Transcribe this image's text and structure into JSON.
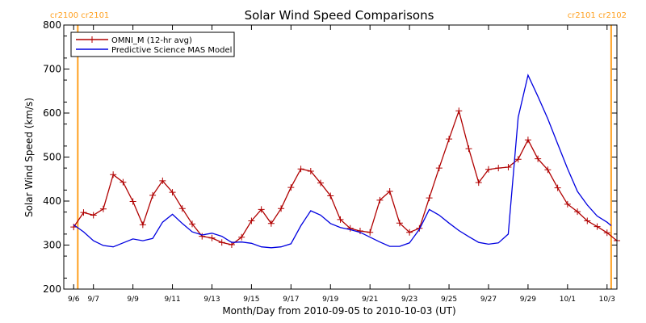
{
  "chart_data": {
    "type": "line",
    "title": "Solar Wind Speed Comparisons",
    "xlabel": "Month/Day from 2010-09-05 to 2010-10-03 (UT)",
    "ylabel": "Solar Wind Speed (km/s)",
    "xlim": [
      "2010-09-05T12:00",
      "2010-10-03T12:00"
    ],
    "ylim": [
      200,
      800
    ],
    "x_ticks": [
      {
        "date": "2010-09-06",
        "label": "9/6"
      },
      {
        "date": "2010-09-07",
        "label": "9/7"
      },
      {
        "date": "2010-09-09",
        "label": "9/9"
      },
      {
        "date": "2010-09-11",
        "label": "9/11"
      },
      {
        "date": "2010-09-13",
        "label": "9/13"
      },
      {
        "date": "2010-09-15",
        "label": "9/15"
      },
      {
        "date": "2010-09-17",
        "label": "9/17"
      },
      {
        "date": "2010-09-19",
        "label": "9/19"
      },
      {
        "date": "2010-09-21",
        "label": "9/21"
      },
      {
        "date": "2010-09-23",
        "label": "9/23"
      },
      {
        "date": "2010-09-25",
        "label": "9/25"
      },
      {
        "date": "2010-09-27",
        "label": "9/27"
      },
      {
        "date": "2010-09-29",
        "label": "9/29"
      },
      {
        "date": "2010-10-01",
        "label": "10/1"
      },
      {
        "date": "2010-10-03",
        "label": "10/3"
      }
    ],
    "y_ticks": [
      200,
      300,
      400,
      500,
      600,
      700,
      800
    ],
    "legend": {
      "position": "top-left",
      "entries": [
        {
          "label": "OMNI_M (12-hr avg)",
          "color": "#b00000"
        },
        {
          "label": "Predictive Science MAS Model",
          "color": "#0000e0"
        }
      ]
    },
    "markers": [
      {
        "date": "2010-09-06T05:00",
        "label": "cr2100 cr2101",
        "color": "#ffa020",
        "label_position": "left"
      },
      {
        "date": "2010-10-03T05:00",
        "label": "cr2101 cr2102",
        "color": "#ffa020",
        "label_position": "right"
      }
    ],
    "series": [
      {
        "name": "OMNI_M (12-hr avg)",
        "color": "#b00000",
        "marker": "plus",
        "points": [
          [
            "2010-09-06T00:00",
            341
          ],
          [
            "2010-09-06T12:00",
            374
          ],
          [
            "2010-09-07T00:00",
            368
          ],
          [
            "2010-09-07T12:00",
            382
          ],
          [
            "2010-09-08T00:00",
            460
          ],
          [
            "2010-09-08T12:00",
            443
          ],
          [
            "2010-09-09T00:00",
            399
          ],
          [
            "2010-09-09T12:00",
            346
          ],
          [
            "2010-09-10T00:00",
            413
          ],
          [
            "2010-09-10T12:00",
            446
          ],
          [
            "2010-09-11T00:00",
            420
          ],
          [
            "2010-09-11T12:00",
            383
          ],
          [
            "2010-09-12T00:00",
            348
          ],
          [
            "2010-09-12T12:00",
            320
          ],
          [
            "2010-09-13T00:00",
            316
          ],
          [
            "2010-09-13T12:00",
            306
          ],
          [
            "2010-09-14T00:00",
            301
          ],
          [
            "2010-09-14T12:00",
            318
          ],
          [
            "2010-09-15T00:00",
            355
          ],
          [
            "2010-09-15T12:00",
            381
          ],
          [
            "2010-09-16T00:00",
            349
          ],
          [
            "2010-09-16T12:00",
            383
          ],
          [
            "2010-09-17T00:00",
            431
          ],
          [
            "2010-09-17T12:00",
            473
          ],
          [
            "2010-09-18T00:00",
            468
          ],
          [
            "2010-09-18T12:00",
            441
          ],
          [
            "2010-09-19T00:00",
            412
          ],
          [
            "2010-09-19T12:00",
            358
          ],
          [
            "2010-09-20T00:00",
            338
          ],
          [
            "2010-09-20T12:00",
            332
          ],
          [
            "2010-09-21T00:00",
            329
          ],
          [
            "2010-09-21T12:00",
            402
          ],
          [
            "2010-09-22T00:00",
            422
          ],
          [
            "2010-09-22T12:00",
            350
          ],
          [
            "2010-09-23T00:00",
            329
          ],
          [
            "2010-09-23T12:00",
            338
          ],
          [
            "2010-09-24T00:00",
            407
          ],
          [
            "2010-09-24T12:00",
            475
          ],
          [
            "2010-09-25T00:00",
            541
          ],
          [
            "2010-09-25T12:00",
            605
          ],
          [
            "2010-09-26T00:00",
            519
          ],
          [
            "2010-09-26T12:00",
            442
          ],
          [
            "2010-09-27T00:00",
            472
          ],
          [
            "2010-09-27T12:00",
            475
          ],
          [
            "2010-09-28T00:00",
            477
          ],
          [
            "2010-09-28T12:00",
            495
          ],
          [
            "2010-09-29T00:00",
            539
          ],
          [
            "2010-09-29T12:00",
            496
          ],
          [
            "2010-09-30T00:00",
            471
          ],
          [
            "2010-09-30T12:00",
            430
          ],
          [
            "2010-10-01T00:00",
            393
          ],
          [
            "2010-10-01T12:00",
            376
          ],
          [
            "2010-10-02T00:00",
            355
          ],
          [
            "2010-10-02T12:00",
            342
          ],
          [
            "2010-10-03T00:00",
            328
          ],
          [
            "2010-10-03T12:00",
            310
          ]
        ]
      },
      {
        "name": "Predictive Science MAS Model",
        "color": "#0000e0",
        "marker": "none",
        "points": [
          [
            "2010-09-06T00:00",
            346
          ],
          [
            "2010-09-06T12:00",
            330
          ],
          [
            "2010-09-07T00:00",
            310
          ],
          [
            "2010-09-07T12:00",
            299
          ],
          [
            "2010-09-08T00:00",
            296
          ],
          [
            "2010-09-08T12:00",
            305
          ],
          [
            "2010-09-09T00:00",
            314
          ],
          [
            "2010-09-09T12:00",
            310
          ],
          [
            "2010-09-10T00:00",
            315
          ],
          [
            "2010-09-10T12:00",
            352
          ],
          [
            "2010-09-11T00:00",
            370
          ],
          [
            "2010-09-11T12:00",
            349
          ],
          [
            "2010-09-12T00:00",
            330
          ],
          [
            "2010-09-12T12:00",
            323
          ],
          [
            "2010-09-13T00:00",
            327
          ],
          [
            "2010-09-13T12:00",
            320
          ],
          [
            "2010-09-14T00:00",
            306
          ],
          [
            "2010-09-14T12:00",
            307
          ],
          [
            "2010-09-15T00:00",
            304
          ],
          [
            "2010-09-15T12:00",
            296
          ],
          [
            "2010-09-16T00:00",
            294
          ],
          [
            "2010-09-16T12:00",
            296
          ],
          [
            "2010-09-17T00:00",
            303
          ],
          [
            "2010-09-17T12:00",
            344
          ],
          [
            "2010-09-18T00:00",
            378
          ],
          [
            "2010-09-18T12:00",
            368
          ],
          [
            "2010-09-19T00:00",
            349
          ],
          [
            "2010-09-19T12:00",
            340
          ],
          [
            "2010-09-20T00:00",
            335
          ],
          [
            "2010-09-20T12:00",
            329
          ],
          [
            "2010-09-21T00:00",
            318
          ],
          [
            "2010-09-21T12:00",
            307
          ],
          [
            "2010-09-22T00:00",
            297
          ],
          [
            "2010-09-22T12:00",
            297
          ],
          [
            "2010-09-23T00:00",
            305
          ],
          [
            "2010-09-23T12:00",
            336
          ],
          [
            "2010-09-24T00:00",
            381
          ],
          [
            "2010-09-24T12:00",
            368
          ],
          [
            "2010-09-25T00:00",
            350
          ],
          [
            "2010-09-25T12:00",
            333
          ],
          [
            "2010-09-26T00:00",
            319
          ],
          [
            "2010-09-26T12:00",
            306
          ],
          [
            "2010-09-27T00:00",
            302
          ],
          [
            "2010-09-27T12:00",
            305
          ],
          [
            "2010-09-28T00:00",
            325
          ],
          [
            "2010-09-28T12:00",
            590
          ],
          [
            "2010-09-29T00:00",
            686
          ],
          [
            "2010-09-29T12:00",
            638
          ],
          [
            "2010-09-30T00:00",
            587
          ],
          [
            "2010-09-30T12:00",
            530
          ],
          [
            "2010-10-01T00:00",
            474
          ],
          [
            "2010-10-01T12:00",
            422
          ],
          [
            "2010-10-02T00:00",
            391
          ],
          [
            "2010-10-02T12:00",
            366
          ],
          [
            "2010-10-03T00:00",
            352
          ],
          [
            "2010-10-03T05:00",
            344
          ]
        ]
      }
    ]
  }
}
